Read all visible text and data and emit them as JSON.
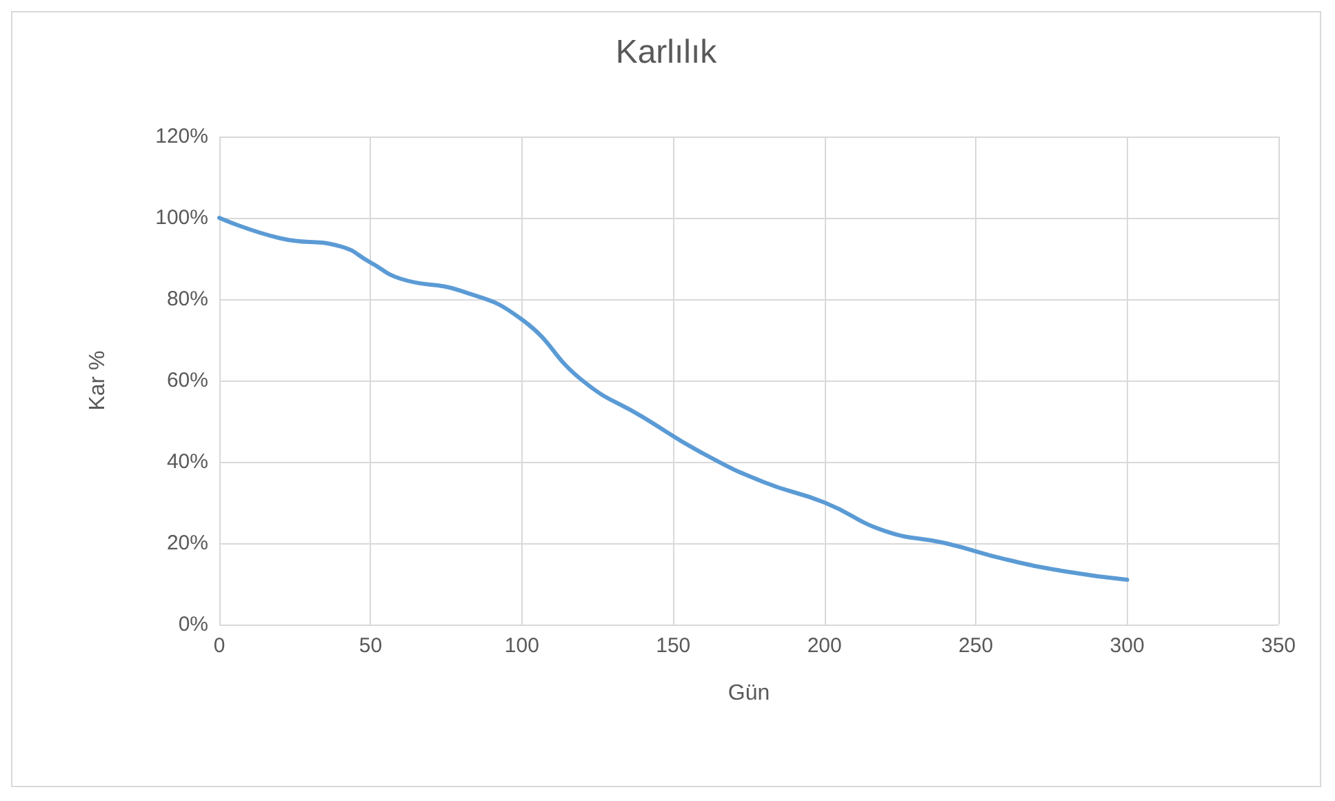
{
  "chart_data": {
    "type": "line",
    "title": "Karlılık",
    "xlabel": "Gün",
    "ylabel": "Kar %",
    "x": [
      0,
      20,
      40,
      50,
      60,
      80,
      100,
      120,
      140,
      160,
      180,
      200,
      220,
      240,
      260,
      280,
      300
    ],
    "series": [
      {
        "color": "#5b9bd5",
        "values": [
          100,
          95,
          93,
          89,
          85,
          82,
          75,
          60,
          51,
          42,
          35,
          30,
          23,
          20,
          16,
          13,
          11
        ]
      }
    ],
    "xlim": [
      0,
      350
    ],
    "xticks": [
      0,
      50,
      100,
      150,
      200,
      250,
      300,
      350
    ],
    "ylim": [
      0,
      120
    ],
    "yticks": [
      {
        "value": 0,
        "label": "0%"
      },
      {
        "value": 20,
        "label": "20%"
      },
      {
        "value": 40,
        "label": "40%"
      },
      {
        "value": 60,
        "label": "60%"
      },
      {
        "value": 80,
        "label": "80%"
      },
      {
        "value": 100,
        "label": "100%"
      },
      {
        "value": 120,
        "label": "120%"
      }
    ],
    "grid": true,
    "marker": "none",
    "line_style": "solid"
  }
}
